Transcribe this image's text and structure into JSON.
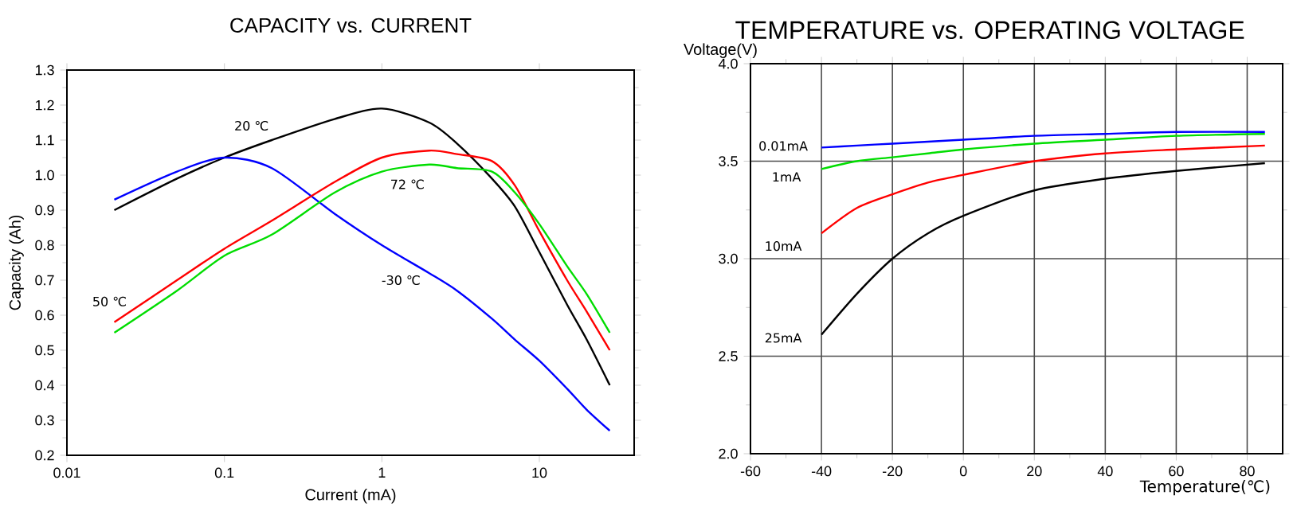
{
  "chart_data": [
    {
      "type": "line",
      "title": "CAPACITY vs. CURRENT",
      "xlabel": "Current (mA)",
      "ylabel": "Capacity (Ah)",
      "log": "x",
      "xlim": [
        0.01,
        40
      ],
      "ylim": [
        0.2,
        1.3
      ],
      "xticks": [
        0.01,
        0.1,
        1,
        10
      ],
      "yticks": [
        0.2,
        0.3,
        0.4,
        0.5,
        0.6,
        0.7,
        0.8,
        0.9,
        {
          "value": 1.0,
          "label": "1.0"
        },
        1.1,
        1.2,
        1.3
      ],
      "x": [
        0.02,
        0.05,
        0.1,
        0.2,
        0.5,
        1,
        2,
        3,
        5,
        7,
        10,
        15,
        20,
        28
      ],
      "series": [
        {
          "name": "20 ℃",
          "color": "#000000",
          "values": [
            0.9,
            0.99,
            1.05,
            1.1,
            1.16,
            1.19,
            1.15,
            1.09,
            0.99,
            0.91,
            0.78,
            0.63,
            0.53,
            0.4
          ]
        },
        {
          "name": "-30 ℃",
          "color": "#0000ff",
          "values": [
            0.93,
            1.01,
            1.05,
            1.02,
            0.89,
            0.8,
            0.72,
            0.67,
            0.59,
            0.53,
            0.47,
            0.39,
            0.33,
            0.27
          ]
        },
        {
          "name": "50 ℃",
          "color": "#ff0000",
          "values": [
            0.58,
            0.7,
            0.79,
            0.87,
            0.98,
            1.05,
            1.07,
            1.06,
            1.04,
            0.97,
            0.84,
            0.7,
            0.61,
            0.5
          ]
        },
        {
          "name": "72 ℃",
          "color": "#00dd00",
          "values": [
            0.55,
            0.67,
            0.77,
            0.83,
            0.95,
            1.01,
            1.03,
            1.02,
            1.01,
            0.95,
            0.86,
            0.74,
            0.66,
            0.55
          ]
        }
      ]
    },
    {
      "type": "line",
      "title": "TEMPERATURE vs. OPERATING VOLTAGE",
      "xlabel": "Temperature(℃)",
      "ylabel": "Voltage(V)",
      "grid": true,
      "xlim": [
        -60,
        90
      ],
      "ylim": [
        2.0,
        4.0
      ],
      "xticks": [
        -60,
        -40,
        -20,
        0,
        20,
        40,
        60,
        80
      ],
      "yticks": [
        {
          "value": 2.0,
          "label": "2.0"
        },
        2.5,
        {
          "value": 3.0,
          "label": "3.0"
        },
        3.5,
        {
          "value": 4.0,
          "label": "4.0"
        }
      ],
      "x": [
        -40,
        -30,
        -20,
        -10,
        0,
        20,
        40,
        60,
        85
      ],
      "series": [
        {
          "name": "0.01mA",
          "color": "#0000ff",
          "values": [
            3.57,
            3.58,
            3.59,
            3.6,
            3.61,
            3.63,
            3.64,
            3.65,
            3.65
          ]
        },
        {
          "name": "1mA",
          "color": "#00dd00",
          "values": [
            3.46,
            3.5,
            3.52,
            3.54,
            3.56,
            3.59,
            3.61,
            3.63,
            3.64
          ]
        },
        {
          "name": "10mA",
          "color": "#ff0000",
          "values": [
            3.13,
            3.26,
            3.33,
            3.39,
            3.43,
            3.5,
            3.54,
            3.56,
            3.58
          ]
        },
        {
          "name": "25mA",
          "color": "#000000",
          "values": [
            2.61,
            2.82,
            3.0,
            3.13,
            3.22,
            3.35,
            3.41,
            3.45,
            3.49
          ]
        }
      ]
    }
  ]
}
